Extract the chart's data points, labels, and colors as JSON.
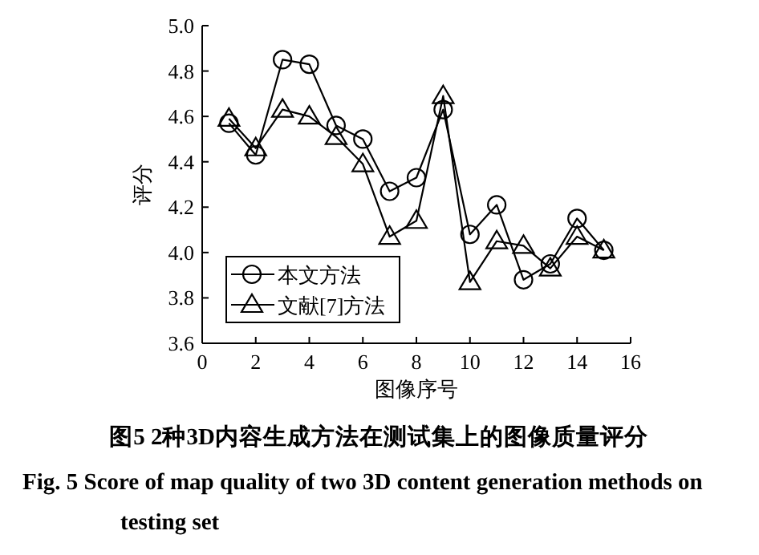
{
  "chart_data": {
    "type": "line",
    "title": "图5 2种3D内容生成方法在测试集上的图像质量评分",
    "subtitle": "Fig. 5 Score of map quality of two 3D content generation methods on testing set",
    "xlabel": "图像序号",
    "ylabel": "评分",
    "x": [
      1,
      2,
      3,
      4,
      5,
      6,
      7,
      8,
      9,
      10,
      11,
      12,
      13,
      14,
      15
    ],
    "series": [
      {
        "name": "本文方法",
        "color": "#000000",
        "marker": "circle",
        "values": [
          4.57,
          4.43,
          4.85,
          4.83,
          4.56,
          4.5,
          4.27,
          4.33,
          4.63,
          4.08,
          4.21,
          3.88,
          3.95,
          4.15,
          4.01
        ]
      },
      {
        "name": "文献[7]方法",
        "color": "#000000",
        "marker": "triangle",
        "values": [
          4.59,
          4.46,
          4.63,
          4.6,
          4.51,
          4.39,
          4.07,
          4.14,
          4.69,
          3.87,
          4.05,
          4.03,
          3.93,
          4.07,
          4.01
        ]
      }
    ],
    "xlim": [
      0,
      16
    ],
    "xticks": [
      0,
      2,
      4,
      6,
      8,
      10,
      12,
      14,
      16
    ],
    "ylim": [
      3.6,
      5.0
    ],
    "yticks": [
      {
        "value": 3.6,
        "label": "3.6"
      },
      {
        "value": 3.8,
        "label": "3.8"
      },
      {
        "value": 4.0,
        "label": "4.0"
      },
      {
        "value": 4.2,
        "label": "4.2"
      },
      {
        "value": 4.4,
        "label": "4.4"
      },
      {
        "value": 4.6,
        "label": "4.6"
      },
      {
        "value": 4.8,
        "label": "4.8"
      },
      {
        "value": 5.0,
        "label": "5.0"
      }
    ],
    "legend": "bottom left",
    "grid": false,
    "line_style": "solid"
  }
}
